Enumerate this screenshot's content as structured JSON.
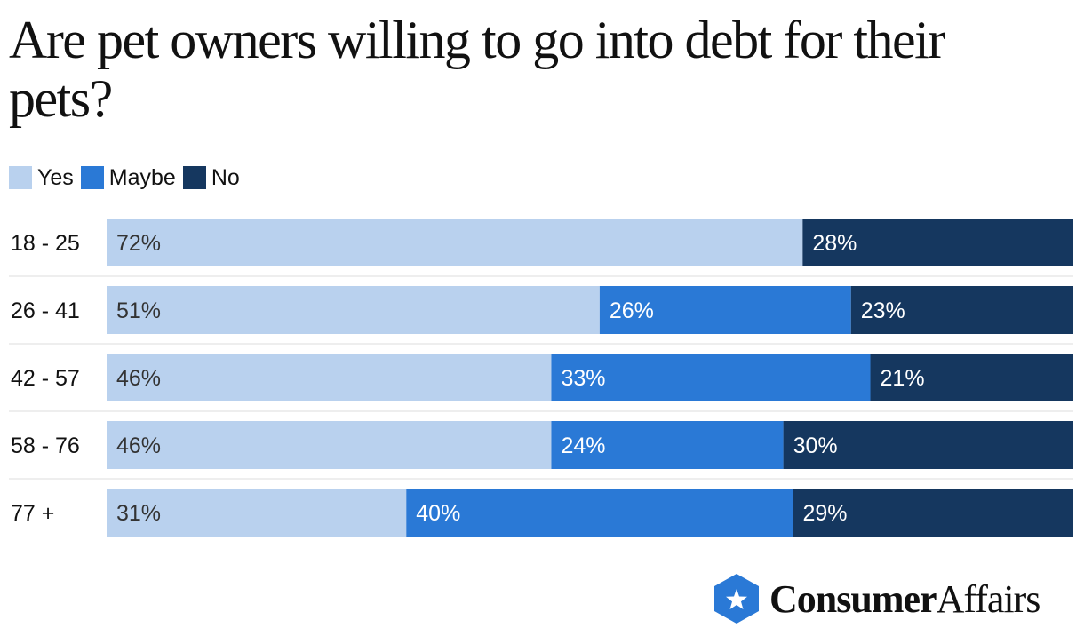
{
  "title": "Are pet owners willing to go into debt for their pets?",
  "legend": [
    {
      "label": "Yes",
      "color": "#b9d1ee"
    },
    {
      "label": "Maybe",
      "color": "#2a79d6"
    },
    {
      "label": "No",
      "color": "#15375f"
    }
  ],
  "chart_data": {
    "type": "bar",
    "orientation": "horizontal",
    "stacked": true,
    "normalized_percent": true,
    "title": "Are pet owners willing to go into debt for their pets?",
    "xlabel": "",
    "ylabel": "",
    "xlim": [
      0,
      100
    ],
    "categories": [
      "18 - 25",
      "26 - 41",
      "42 - 57",
      "58 - 76",
      "77 +"
    ],
    "series": [
      {
        "name": "Yes",
        "color": "#b9d1ee",
        "text_color": "#333333",
        "values": [
          72,
          51,
          46,
          46,
          31
        ],
        "labels": [
          "72%",
          "51%",
          "46%",
          "46%",
          "31%"
        ]
      },
      {
        "name": "Maybe",
        "color": "#2a79d6",
        "text_color": "#ffffff",
        "values": [
          0,
          26,
          33,
          24,
          40
        ],
        "labels": [
          "",
          "26%",
          "33%",
          "24%",
          "40%"
        ]
      },
      {
        "name": "No",
        "color": "#15375f",
        "text_color": "#ffffff",
        "values": [
          28,
          23,
          21,
          30,
          29
        ],
        "labels": [
          "28%",
          "23%",
          "21%",
          "30%",
          "29%"
        ]
      }
    ],
    "legend_position": "top-left",
    "grid": false
  },
  "logo": {
    "icon": "star-hexagon-icon",
    "brand_bold": "Consumer",
    "brand_light": "Affairs",
    "color": "#2a79d6"
  }
}
